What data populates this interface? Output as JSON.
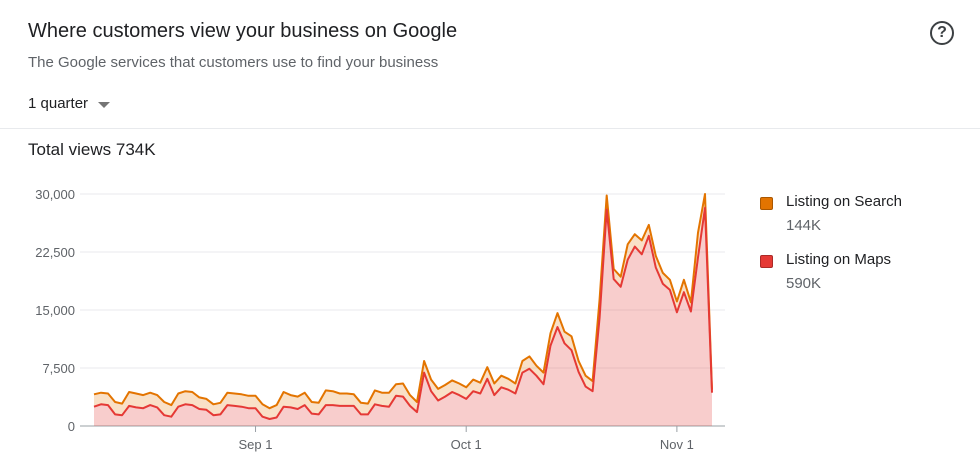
{
  "header": {
    "title": "Where customers view your business on Google",
    "subtitle": "The Google services that customers use to find your business"
  },
  "period_selector": {
    "label": "1 quarter"
  },
  "help_icon": "help-circle-icon",
  "total_views": "Total views 734K",
  "legend": [
    {
      "name": "Listing on Search",
      "value": "144K",
      "color": "#e37400"
    },
    {
      "name": "Listing on Maps",
      "value": "590K",
      "color": "#e53935"
    }
  ],
  "chart_data": {
    "type": "area",
    "stacked": true,
    "ylim": [
      0,
      30000
    ],
    "yticks": [
      "0",
      "7,500",
      "15,000",
      "22,500",
      "30,000"
    ],
    "ytick_values": [
      0,
      7500,
      15000,
      22500,
      30000
    ],
    "xticks": [
      "Sep 1",
      "Oct 1",
      "Nov 1"
    ],
    "xtick_positions": [
      23,
      53,
      83
    ],
    "grid": true,
    "legend_position": "right",
    "series": [
      {
        "name": "Listing on Maps",
        "color": "#e53935",
        "values": [
          2500,
          2800,
          2700,
          1500,
          1400,
          2600,
          2400,
          2300,
          2700,
          2400,
          1400,
          1200,
          2500,
          2800,
          2700,
          2200,
          2100,
          1400,
          1500,
          2700,
          2600,
          2500,
          2300,
          2300,
          1200,
          900,
          1100,
          2500,
          2400,
          2200,
          2700,
          1600,
          1500,
          2700,
          2700,
          2600,
          2600,
          2600,
          1500,
          1500,
          2800,
          2600,
          2500,
          3900,
          3800,
          2600,
          1800,
          6900,
          4500,
          3300,
          3800,
          4400,
          4000,
          3500,
          4500,
          4200,
          6100,
          4000,
          5000,
          4700,
          4200,
          6900,
          7400,
          6500,
          5400,
          10400,
          12800,
          10700,
          9800,
          7000,
          5100,
          4500,
          14000,
          28000,
          19000,
          18000,
          21500,
          23200,
          22200,
          24600,
          20500,
          18400,
          17600,
          14700,
          17300,
          14800,
          21800,
          28200,
          4300
        ]
      },
      {
        "name": "Listing on Search",
        "color": "#e37400",
        "values": [
          1600,
          1500,
          1500,
          1600,
          1500,
          1800,
          1800,
          1700,
          1600,
          1600,
          1700,
          1500,
          1700,
          1700,
          1700,
          1500,
          1400,
          1400,
          1500,
          1600,
          1600,
          1600,
          1600,
          1600,
          1600,
          1400,
          1600,
          1900,
          1600,
          1600,
          1600,
          1500,
          1500,
          1900,
          1800,
          1600,
          1600,
          1500,
          1500,
          1400,
          1800,
          1700,
          1800,
          1500,
          1700,
          1400,
          1300,
          1500,
          1500,
          1500,
          1500,
          1500,
          1500,
          1500,
          1500,
          1400,
          1500,
          1500,
          1500,
          1400,
          1300,
          1500,
          1600,
          1300,
          1500,
          1600,
          1800,
          1500,
          1800,
          1400,
          1400,
          1300,
          2400,
          1800,
          1300,
          1300,
          2000,
          1600,
          1800,
          1400,
          1500,
          1400,
          1300,
          1400,
          1600,
          1200,
          3200,
          1800,
          400
        ]
      }
    ]
  }
}
